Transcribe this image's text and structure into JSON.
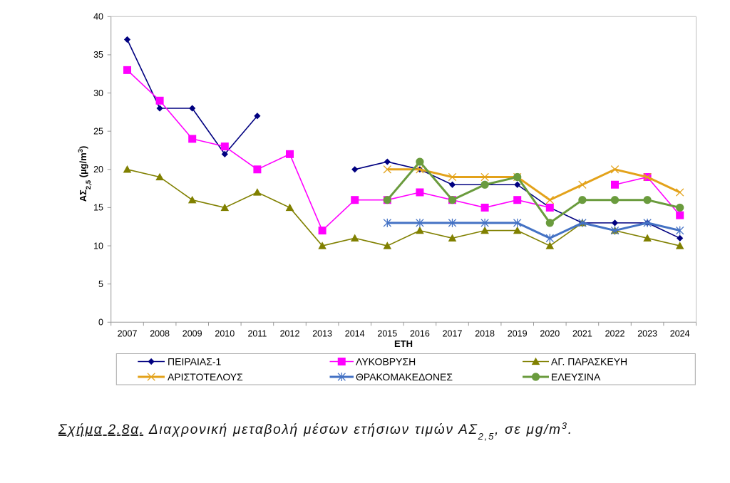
{
  "chart_data": {
    "type": "line",
    "xlabel": "ΕΤΗ",
    "ylabel": {
      "main": "ΑΣ",
      "sub": "2,5",
      "unit_open": " (µg/m",
      "sup": "3",
      "close": ")"
    },
    "ylim": [
      0,
      40
    ],
    "yticks": [
      0,
      5,
      10,
      15,
      20,
      25,
      30,
      35,
      40
    ],
    "grid": false,
    "legend_position": "bottom",
    "categories": [
      "2007",
      "2008",
      "2009",
      "2010",
      "2011",
      "2012",
      "2013",
      "2014",
      "2015",
      "2016",
      "2017",
      "2018",
      "2019",
      "2020",
      "2021",
      "2022",
      "2023",
      "2024"
    ],
    "series": [
      {
        "name": "ΠΕΙΡΑΙΑΣ-1",
        "color": "#000080",
        "marker": "diamond",
        "width": 1.6,
        "values": [
          37,
          28,
          28,
          22,
          27,
          null,
          null,
          20,
          21,
          20,
          18,
          18,
          18,
          15,
          13,
          13,
          13,
          11
        ]
      },
      {
        "name": "ΛΥΚΟΒΡΥΣΗ",
        "color": "#FF00FF",
        "marker": "square",
        "width": 1.6,
        "values": [
          33,
          29,
          24,
          23,
          20,
          22,
          12,
          16,
          16,
          17,
          16,
          15,
          16,
          15,
          null,
          18,
          19,
          14
        ]
      },
      {
        "name": "ΑΓ. ΠΑΡΑΣΚΕΥΗ",
        "color": "#808000",
        "marker": "triangle",
        "width": 1.6,
        "values": [
          20,
          19,
          16,
          15,
          17,
          15,
          10,
          11,
          10,
          12,
          11,
          12,
          12,
          10,
          13,
          12,
          11,
          10
        ]
      },
      {
        "name": "ΑΡΙΣΤΟΤΕΛΟΥΣ",
        "color": "#E3A21A",
        "marker": "x",
        "width": 3,
        "values": [
          null,
          null,
          null,
          null,
          null,
          null,
          null,
          null,
          20,
          20,
          19,
          19,
          19,
          16,
          18,
          20,
          19,
          17
        ]
      },
      {
        "name": "ΘΡΑΚΟΜΑΚΕΔΟΝΕΣ",
        "color": "#4472C4",
        "marker": "asterisk",
        "width": 3,
        "values": [
          null,
          null,
          null,
          null,
          null,
          null,
          null,
          null,
          13,
          13,
          13,
          13,
          13,
          11,
          13,
          12,
          13,
          12
        ]
      },
      {
        "name": "ΕΛΕΥΣΙΝΑ",
        "color": "#6A9B3D",
        "marker": "circle",
        "width": 3,
        "values": [
          null,
          null,
          null,
          null,
          null,
          null,
          null,
          null,
          16,
          21,
          16,
          18,
          19,
          13,
          16,
          16,
          16,
          15
        ]
      }
    ]
  },
  "caption": {
    "label": "Σχήμα 2.8α.",
    "text": "Διαχρονική μεταβολή μέσων ετήσιων τιμών ΑΣ",
    "sub": "2,5",
    "text_mid": ", σε μg/m",
    "sup": "3",
    "end": "."
  }
}
